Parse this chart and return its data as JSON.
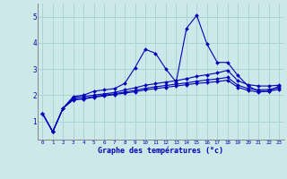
{
  "xlabel": "Graphe des températures (°c)",
  "bg_color": "#cce8e8",
  "line_color": "#0000bb",
  "grid_color": "#aad4d4",
  "xlim": [
    -0.5,
    23.5
  ],
  "ylim": [
    0.3,
    5.5
  ],
  "xticks": [
    0,
    1,
    2,
    3,
    4,
    5,
    6,
    7,
    8,
    9,
    10,
    11,
    12,
    13,
    14,
    15,
    16,
    17,
    18,
    19,
    20,
    21,
    22,
    23
  ],
  "yticks": [
    1,
    2,
    3,
    4,
    5
  ],
  "series": [
    {
      "x": [
        0,
        1,
        2,
        3,
        4,
        5,
        6,
        7,
        8,
        9,
        10,
        11,
        12,
        13,
        14,
        15,
        16,
        17,
        18,
        19,
        20,
        21,
        22,
        23
      ],
      "y": [
        1.3,
        0.6,
        1.5,
        1.95,
        2.0,
        2.15,
        2.2,
        2.25,
        2.45,
        3.05,
        3.75,
        3.6,
        3.0,
        2.5,
        4.55,
        5.05,
        3.95,
        3.25,
        3.25,
        2.75,
        2.35,
        2.15,
        2.15,
        2.35
      ]
    },
    {
      "x": [
        0,
        1,
        2,
        3,
        4,
        5,
        6,
        7,
        8,
        9,
        10,
        11,
        12,
        13,
        14,
        15,
        16,
        17,
        18,
        19,
        20,
        21,
        22,
        23
      ],
      "y": [
        1.3,
        0.6,
        1.5,
        1.9,
        1.95,
        2.0,
        2.05,
        2.1,
        2.2,
        2.28,
        2.38,
        2.44,
        2.5,
        2.55,
        2.63,
        2.72,
        2.78,
        2.85,
        2.95,
        2.55,
        2.4,
        2.35,
        2.35,
        2.38
      ]
    },
    {
      "x": [
        0,
        1,
        2,
        3,
        4,
        5,
        6,
        7,
        8,
        9,
        10,
        11,
        12,
        13,
        14,
        15,
        16,
        17,
        18,
        19,
        20,
        21,
        22,
        23
      ],
      "y": [
        1.3,
        0.6,
        1.5,
        1.85,
        1.88,
        1.95,
        2.0,
        2.05,
        2.12,
        2.18,
        2.26,
        2.32,
        2.37,
        2.42,
        2.47,
        2.53,
        2.58,
        2.62,
        2.68,
        2.38,
        2.25,
        2.2,
        2.22,
        2.28
      ]
    },
    {
      "x": [
        0,
        1,
        2,
        3,
        4,
        5,
        6,
        7,
        8,
        9,
        10,
        11,
        12,
        13,
        14,
        15,
        16,
        17,
        18,
        19,
        20,
        21,
        22,
        23
      ],
      "y": [
        1.3,
        0.6,
        1.5,
        1.82,
        1.85,
        1.92,
        1.97,
        2.02,
        2.08,
        2.13,
        2.2,
        2.25,
        2.3,
        2.35,
        2.4,
        2.45,
        2.48,
        2.52,
        2.57,
        2.3,
        2.18,
        2.12,
        2.15,
        2.22
      ]
    }
  ]
}
